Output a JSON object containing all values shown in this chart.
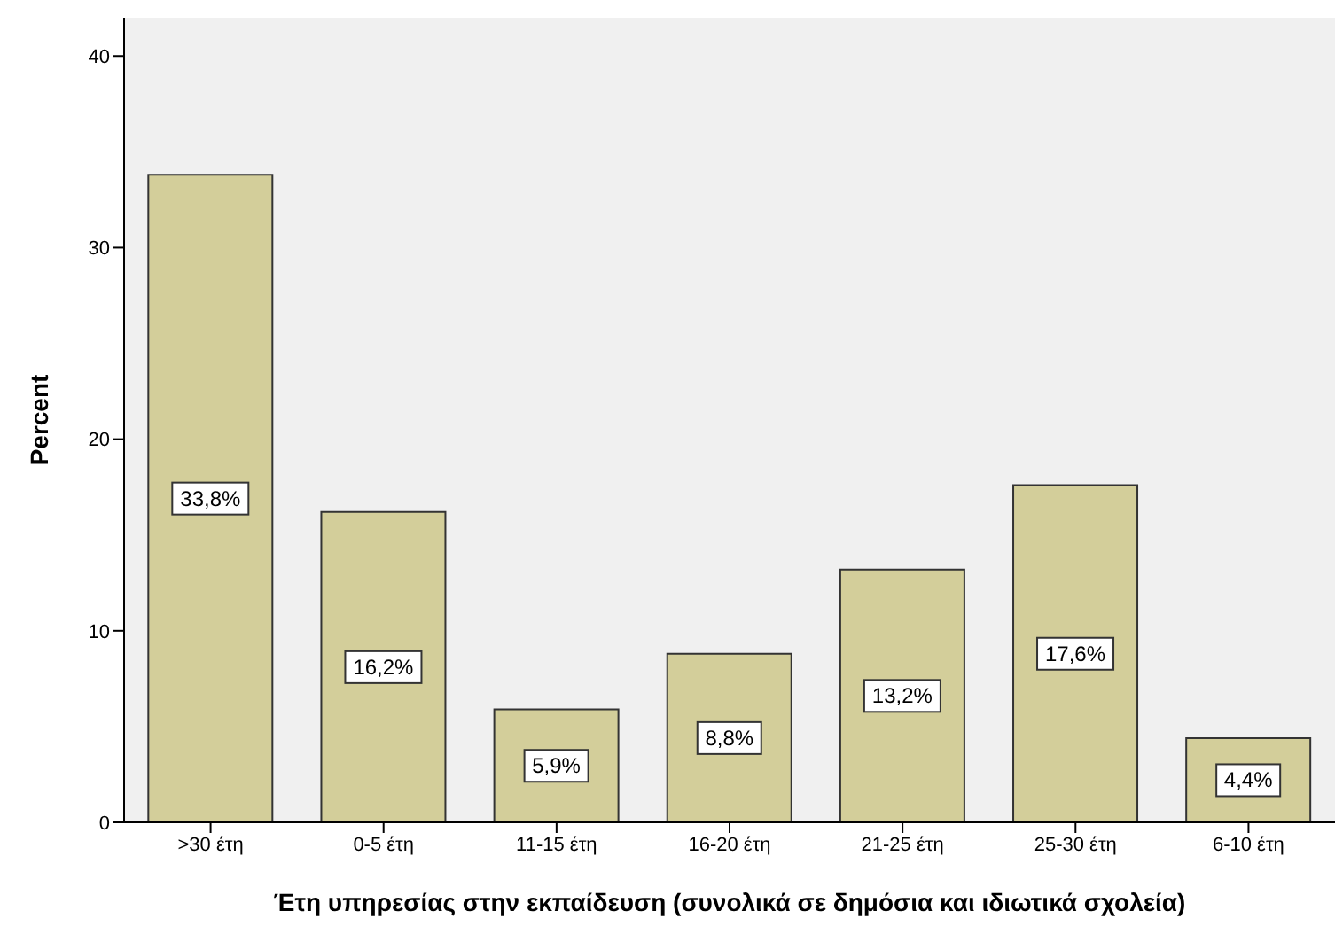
{
  "chart_data": {
    "type": "bar",
    "xlabel": "Έτη υπηρεσίας στην εκπαίδευση (συνολικά σε δημόσια και ιδιωτικά σχολεία)",
    "ylabel": "Percent",
    "categories": [
      ">30 έτη",
      "0-5 έτη",
      "11-15 έτη",
      "16-20 έτη",
      "21-25 έτη",
      "25-30 έτη",
      "6-10 έτη"
    ],
    "values": [
      33.8,
      16.2,
      5.9,
      8.8,
      13.2,
      17.6,
      4.4
    ],
    "value_labels": [
      "33,8%",
      "16,2%",
      "5,9%",
      "8,8%",
      "13,2%",
      "17,6%",
      "4,4%"
    ],
    "color": "#d3ce9a",
    "ylim": [
      0,
      42
    ],
    "yticks": [
      0,
      10,
      20,
      30,
      40
    ],
    "grid": false,
    "legend": false
  }
}
